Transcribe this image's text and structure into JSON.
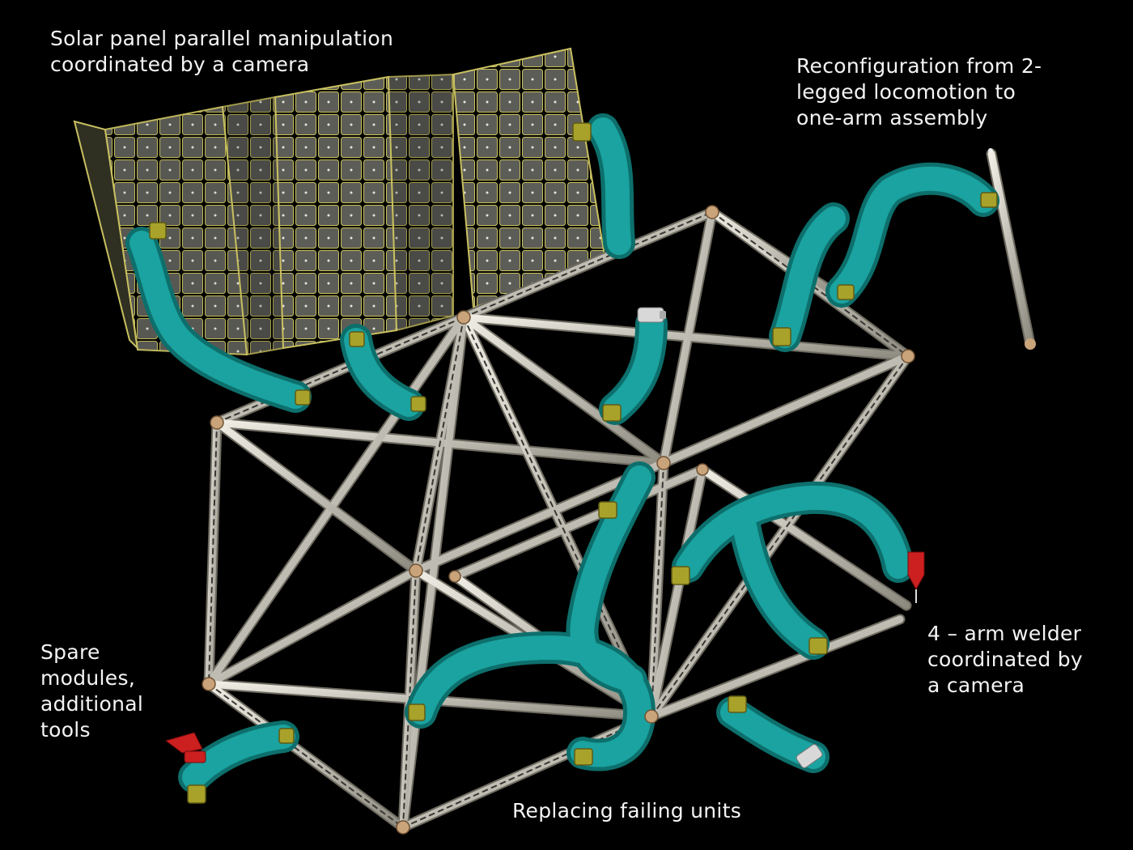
{
  "annotations": {
    "solar": [
      "Solar panel parallel manipulation",
      "coordinated by a camera"
    ],
    "reconfig": [
      "Reconfiguration from 2-",
      "legged locomotion to",
      "one-arm assembly"
    ],
    "spare": [
      "Spare",
      "modules,",
      "additional",
      "tools"
    ],
    "welder": [
      "4 – arm welder",
      "coordinated by",
      "a camera"
    ],
    "replace": [
      "Replacing failing units"
    ]
  },
  "colors": {
    "background": "#000000",
    "module_teal": "#1aa3a0",
    "module_teal_dark": "#0d6f6c",
    "strut_light": "#d9d6c8",
    "strut_shadow": "#6d6a60",
    "node": "#c9a37a",
    "connector_yellow": "#a8a22a",
    "solar_cell": "#5a5a55",
    "solar_frame": "#c8c060",
    "tool_red": "#cc1f1f",
    "label_text": "#f4f4f4"
  }
}
